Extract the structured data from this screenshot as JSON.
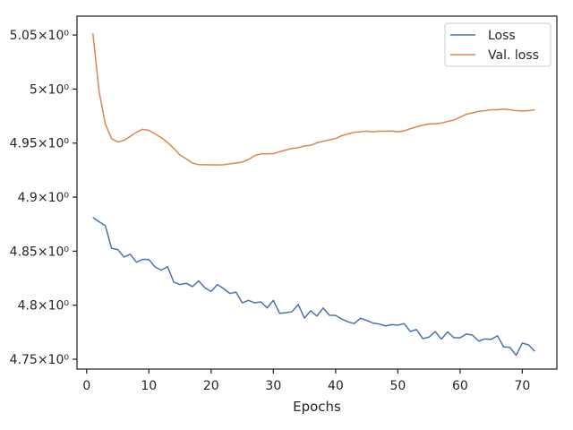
{
  "chart_data": {
    "type": "line",
    "title": "",
    "xlabel": "Epochs",
    "ylabel": "",
    "xlim": [
      -1.55,
      75.55
    ],
    "ylim": [
      4.7409,
      5.0675
    ],
    "grid": false,
    "legend_position": "top-right",
    "x_ticks": [
      0,
      10,
      20,
      30,
      40,
      50,
      60,
      70
    ],
    "x_tick_labels": [
      "0",
      "10",
      "20",
      "30",
      "40",
      "50",
      "60",
      "70"
    ],
    "y_ticks": [
      4.75,
      4.8,
      4.85,
      4.9,
      4.95,
      5.0,
      5.05
    ],
    "y_tick_labels": [
      "4.75×10⁰",
      "4.8×10⁰",
      "4.85×10⁰",
      "4.9×10⁰",
      "4.95×10⁰",
      "5×10⁰",
      "5.05×10⁰"
    ],
    "colors": {
      "loss": "#4c72b0",
      "val_loss": "#dd8452",
      "axes": "#262626"
    },
    "x": [
      1,
      2,
      3,
      4,
      5,
      6,
      7,
      8,
      9,
      10,
      11,
      12,
      13,
      14,
      15,
      16,
      17,
      18,
      19,
      20,
      21,
      22,
      23,
      24,
      25,
      26,
      27,
      28,
      29,
      30,
      31,
      32,
      33,
      34,
      35,
      36,
      37,
      38,
      39,
      40,
      41,
      42,
      43,
      44,
      45,
      46,
      47,
      48,
      49,
      50,
      51,
      52,
      53,
      54,
      55,
      56,
      57,
      58,
      59,
      60,
      61,
      62,
      63,
      64,
      65,
      66,
      67,
      68,
      69,
      70,
      71,
      72
    ],
    "series": [
      {
        "name": "Loss",
        "color": "#4c72b0",
        "values": [
          4.8812,
          4.8773,
          4.8736,
          4.8527,
          4.8515,
          4.8446,
          4.8472,
          4.8398,
          4.8424,
          4.8423,
          4.8353,
          4.8325,
          4.8356,
          4.8214,
          4.8191,
          4.8203,
          4.8172,
          4.8225,
          4.8161,
          4.8127,
          4.8191,
          4.8154,
          4.8109,
          4.8121,
          4.8022,
          4.8045,
          4.8022,
          4.8031,
          4.7975,
          4.8045,
          4.7925,
          4.793,
          4.794,
          4.8007,
          4.7881,
          4.7949,
          4.7899,
          4.7974,
          4.7907,
          4.7905,
          4.7872,
          4.7846,
          4.783,
          4.788,
          4.7859,
          4.7835,
          4.7826,
          4.7808,
          4.782,
          4.7815,
          4.783,
          4.7757,
          4.7775,
          4.7691,
          4.7704,
          4.7756,
          4.7686,
          4.7754,
          4.7699,
          4.7698,
          4.7734,
          4.7723,
          4.7668,
          4.7688,
          4.7684,
          4.7717,
          4.7614,
          4.761,
          4.7537,
          4.765,
          4.7633,
          4.7574
        ]
      },
      {
        "name": "Val. loss",
        "color": "#dd8452",
        "values": [
          5.0517,
          4.9977,
          4.9678,
          4.9542,
          4.9511,
          4.9526,
          4.9562,
          4.9601,
          4.9628,
          4.9618,
          4.9585,
          4.955,
          4.9506,
          4.9451,
          4.9389,
          4.9354,
          4.9315,
          4.9301,
          4.93,
          4.9299,
          4.9298,
          4.93,
          4.9308,
          4.9316,
          4.9325,
          4.9348,
          4.9385,
          4.94,
          4.94,
          4.9403,
          4.942,
          4.9436,
          4.945,
          4.9458,
          4.9473,
          4.948,
          4.9503,
          4.9517,
          4.953,
          4.9543,
          4.9569,
          4.9585,
          4.96,
          4.9605,
          4.9611,
          4.9604,
          4.9611,
          4.961,
          4.9612,
          4.9605,
          4.9613,
          4.9633,
          4.965,
          4.9666,
          4.9677,
          4.9679,
          4.9685,
          4.9701,
          4.9713,
          4.974,
          4.9767,
          4.978,
          4.9794,
          4.98,
          4.9809,
          4.9809,
          4.9815,
          4.9809,
          4.98,
          4.9797,
          4.98,
          4.9808
        ]
      }
    ]
  }
}
